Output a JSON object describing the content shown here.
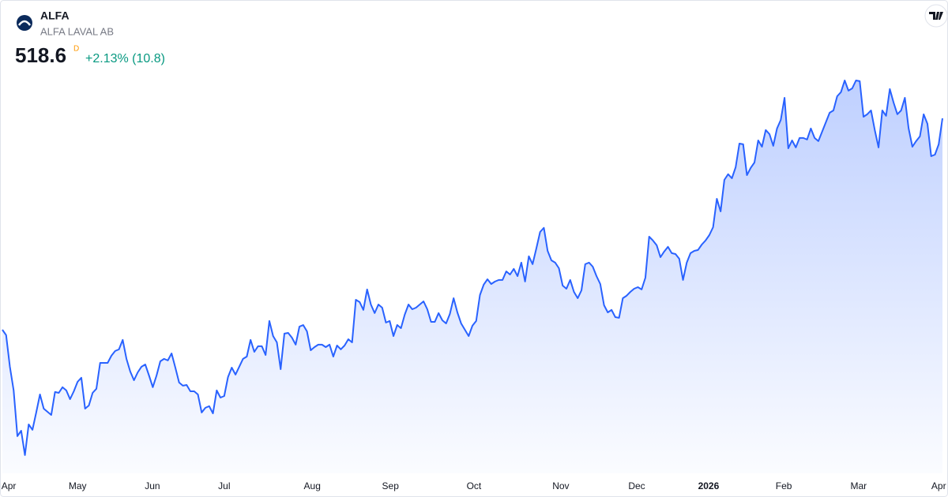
{
  "header": {
    "symbol": "ALFA",
    "name": "ALFA LAVAL AB",
    "price": 518.6,
    "interval": "D",
    "change": "+2.13% (10.8)"
  },
  "chart_data": {
    "type": "area",
    "color": "#2962ff",
    "values": [
      424.8,
      422.4,
      408.4,
      397.9,
      377.6,
      380.0,
      369.2,
      382.8,
      380.4,
      388.1,
      396.1,
      389.8,
      388.4,
      387.0,
      397.2,
      396.8,
      399.3,
      397.9,
      394.0,
      397.5,
      401.7,
      403.5,
      389.8,
      391.2,
      396.8,
      398.6,
      410.1,
      410.1,
      410.1,
      413.3,
      415.4,
      416.1,
      420.3,
      411.9,
      406.3,
      402.4,
      405.9,
      408.4,
      409.4,
      404.5,
      399.3,
      404.5,
      410.8,
      411.9,
      411.2,
      414.3,
      408.0,
      401.4,
      400.0,
      400.3,
      397.5,
      397.5,
      396.1,
      388.1,
      390.2,
      390.9,
      387.7,
      397.9,
      394.7,
      395.4,
      403.8,
      408.0,
      404.9,
      408.4,
      411.9,
      412.9,
      420.3,
      415.0,
      417.5,
      417.5,
      413.6,
      428.7,
      422.0,
      419.2,
      407.3,
      423.1,
      423.4,
      421.3,
      418.2,
      426.2,
      426.9,
      424.1,
      415.7,
      417.1,
      418.2,
      418.2,
      417.1,
      418.2,
      412.9,
      417.8,
      416.1,
      417.8,
      420.6,
      419.2,
      438.1,
      437.1,
      433.6,
      442.7,
      436.0,
      432.2,
      436.0,
      434.6,
      428.0,
      428.7,
      422.0,
      426.9,
      425.5,
      431.5,
      436.0,
      433.9,
      434.6,
      436.0,
      437.4,
      433.9,
      428.3,
      428.3,
      432.2,
      429.0,
      427.6,
      431.8,
      438.8,
      432.5,
      427.6,
      424.8,
      422.0,
      426.6,
      428.7,
      440.2,
      444.8,
      447.2,
      445.1,
      446.2,
      446.9,
      446.9,
      450.7,
      449.3,
      451.8,
      448.6,
      454.6,
      446.2,
      457.4,
      453.9,
      460.9,
      468.2,
      470.0,
      459.8,
      455.6,
      454.6,
      452.1,
      444.4,
      443.0,
      446.9,
      441.6,
      438.8,
      442.3,
      453.9,
      454.6,
      452.8,
      448.6,
      445.1,
      435.7,
      432.5,
      433.6,
      430.4,
      430.1,
      438.8,
      439.9,
      441.6,
      443.0,
      443.7,
      442.7,
      447.9,
      466.1,
      464.4,
      462.3,
      457.0,
      459.5,
      461.6,
      458.8,
      458.4,
      456.3,
      446.9,
      454.6,
      458.8,
      459.8,
      460.2,
      462.6,
      464.4,
      466.8,
      470.3,
      482.9,
      477.3,
      491.3,
      493.8,
      492.0,
      496.9,
      507.4,
      507.1,
      493.4,
      496.6,
      499.0,
      508.8,
      506.0,
      513.4,
      511.6,
      506.4,
      514.1,
      517.9,
      527.7,
      505.3,
      508.8,
      505.7,
      509.9,
      509.9,
      509.2,
      514.1,
      509.9,
      508.5,
      512.7,
      516.9,
      521.1,
      522.1,
      528.4,
      530.2,
      535.4,
      530.9,
      531.9,
      535.4,
      535.1,
      519.3,
      520.4,
      522.1,
      513.4,
      505.7,
      522.1,
      519.7,
      531.6,
      525.6,
      520.4,
      522.1,
      527.7,
      514.1,
      506.0,
      508.5,
      510.6,
      520.4,
      516.2,
      501.8,
      502.5,
      507.1,
      518.6
    ],
    "xlim": [
      0,
      250
    ],
    "ylim": [
      361.1,
      571.1
    ],
    "xticks": [
      {
        "value": 1.7,
        "label": "Apr"
      },
      {
        "value": 20.0,
        "label": "May"
      },
      {
        "value": 39.9,
        "label": "Jun"
      },
      {
        "value": 59.0,
        "label": "Jul"
      },
      {
        "value": 82.4,
        "label": "Aug"
      },
      {
        "value": 103.2,
        "label": "Sep"
      },
      {
        "value": 125.4,
        "label": "Oct"
      },
      {
        "value": 148.5,
        "label": "Nov"
      },
      {
        "value": 168.7,
        "label": "Dec"
      },
      {
        "value": 187.8,
        "label": "2026",
        "bold": true
      },
      {
        "value": 207.8,
        "label": "Feb"
      },
      {
        "value": 227.7,
        "label": "Mar"
      },
      {
        "value": 249.0,
        "label": "Apr"
      }
    ]
  }
}
